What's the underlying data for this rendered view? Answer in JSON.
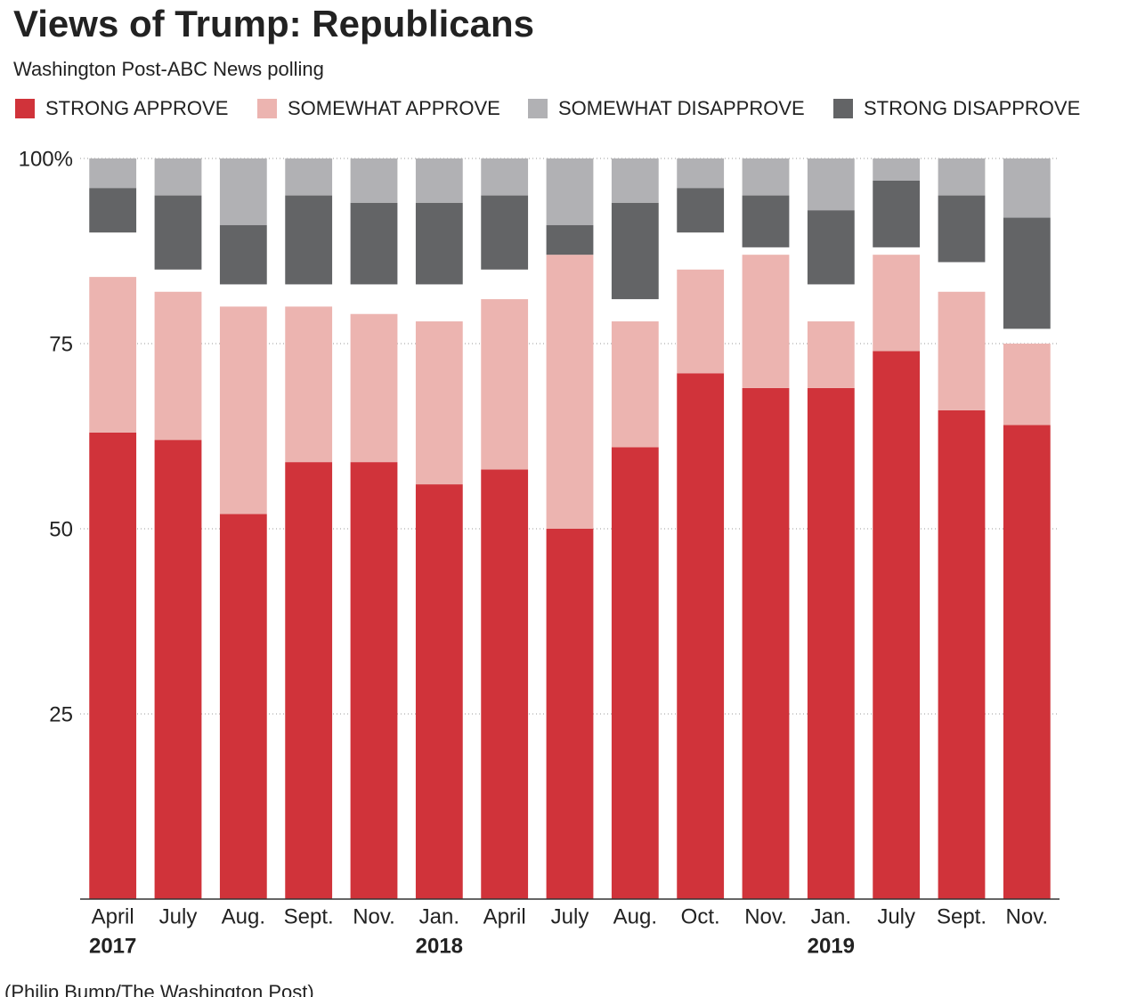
{
  "chart_data": {
    "type": "stacked-bar",
    "title": "Views of Trump: Republicans",
    "subtitle": "Washington Post-ABC News polling",
    "source": "(Philip Bump/The Washington Post)",
    "categories": [
      "April",
      "July",
      "Aug.",
      "Sept.",
      "Nov.",
      "Jan.",
      "April",
      "July",
      "Aug.",
      "Oct.",
      "Nov.",
      "Jan.",
      "July",
      "Sept.",
      "Nov."
    ],
    "x_groups": [
      "2017",
      null,
      null,
      null,
      null,
      "2018",
      null,
      null,
      null,
      null,
      null,
      "2019",
      null,
      null,
      null
    ],
    "series": [
      {
        "name": "STRONG APPROVE",
        "color": "#d0333a",
        "stack": "bottom",
        "values": [
          63,
          62,
          52,
          59,
          59,
          56,
          58,
          50,
          61,
          71,
          69,
          69,
          74,
          66,
          64
        ]
      },
      {
        "name": "SOMEWHAT APPROVE",
        "color": "#ecb4b0",
        "stack": "bottom",
        "values": [
          21,
          20,
          28,
          21,
          20,
          22,
          23,
          37,
          17,
          14,
          18,
          9,
          13,
          16,
          11
        ]
      },
      {
        "name": "SOMEWHAT DISAPPROVE",
        "color": "#b1b1b4",
        "stack": "top",
        "values": [
          4,
          5,
          9,
          5,
          6,
          6,
          5,
          9,
          6,
          4,
          5,
          7,
          3,
          5,
          8
        ]
      },
      {
        "name": "STRONG DISAPPROVE",
        "color": "#636466",
        "stack": "top",
        "values": [
          6,
          10,
          8,
          12,
          11,
          11,
          10,
          4,
          13,
          6,
          7,
          10,
          9,
          9,
          15
        ]
      }
    ],
    "ylim": [
      0,
      100
    ],
    "yticks": [
      {
        "value": 100,
        "label": "100%"
      },
      75,
      50,
      25
    ],
    "grid": true
  }
}
